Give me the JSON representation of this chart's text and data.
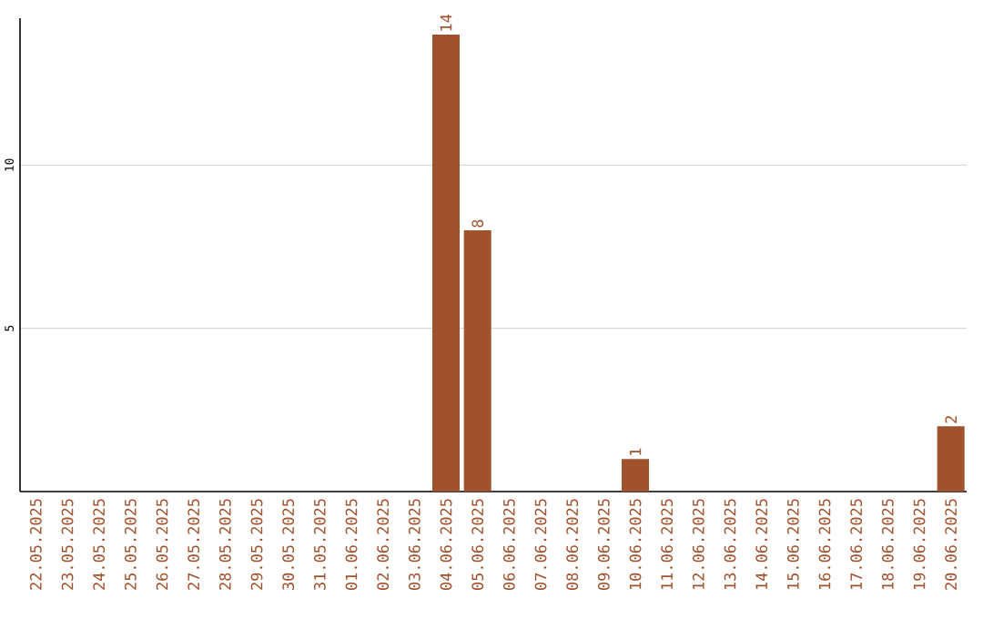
{
  "chart_data": {
    "type": "bar",
    "categories": [
      "22.05.2025",
      "23.05.2025",
      "24.05.2025",
      "25.05.2025",
      "26.05.2025",
      "27.05.2025",
      "28.05.2025",
      "29.05.2025",
      "30.05.2025",
      "31.05.2025",
      "01.06.2025",
      "02.06.2025",
      "03.06.2025",
      "04.06.2025",
      "05.06.2025",
      "06.06.2025",
      "07.06.2025",
      "08.06.2025",
      "09.06.2025",
      "10.06.2025",
      "11.06.2025",
      "12.06.2025",
      "13.06.2025",
      "14.06.2025",
      "15.06.2025",
      "16.06.2025",
      "17.06.2025",
      "18.06.2025",
      "19.06.2025",
      "20.06.2025"
    ],
    "values": [
      0,
      0,
      0,
      0,
      0,
      0,
      0,
      0,
      0,
      0,
      0,
      0,
      0,
      14,
      8,
      0,
      0,
      0,
      0,
      1,
      0,
      0,
      0,
      0,
      0,
      0,
      0,
      0,
      0,
      2
    ],
    "value_labels": [
      null,
      null,
      null,
      null,
      null,
      null,
      null,
      null,
      null,
      null,
      null,
      null,
      null,
      "14",
      "8",
      null,
      null,
      null,
      null,
      "1",
      null,
      null,
      null,
      null,
      null,
      null,
      null,
      null,
      null,
      "2"
    ],
    "color": "#a0522d",
    "ylim": [
      0,
      14.5
    ],
    "yticks": [
      5,
      10
    ],
    "grid": "y"
  }
}
